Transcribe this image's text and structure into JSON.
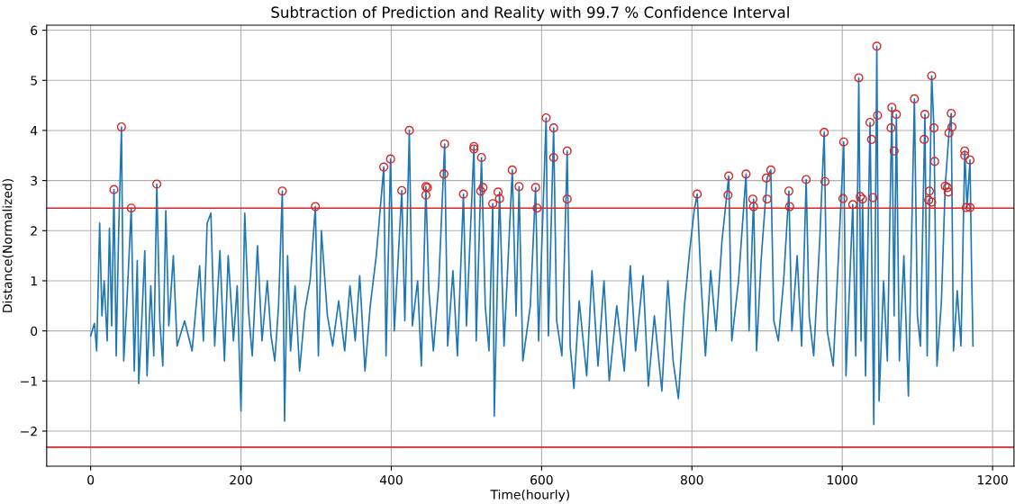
{
  "chart_data": {
    "type": "line",
    "title": "Subtraction of Prediction and Reality with 99.7 % Confidence Interval",
    "xlabel": "Time(hourly)",
    "ylabel": "Distance(Normalized)",
    "xlim": [
      -58.5,
      1228.5
    ],
    "ylim": [
      -2.7,
      6.1
    ],
    "xticks": [
      0,
      200,
      400,
      600,
      800,
      1000,
      1200
    ],
    "yticks": [
      {
        "value": -2,
        "label": "−2"
      },
      {
        "value": -1,
        "label": "−1"
      },
      0,
      1,
      2,
      3,
      4,
      5,
      6
    ],
    "grid": true,
    "series": [
      {
        "color": "#1f77b4",
        "marker": "none",
        "x": [
          0,
          5,
          8,
          12,
          15,
          18,
          22,
          25,
          28,
          31,
          34,
          37,
          41,
          44,
          48,
          54,
          58,
          62,
          64,
          68,
          72,
          75,
          80,
          84,
          88,
          92,
          96,
          100,
          104,
          110,
          115,
          125,
          135,
          145,
          150,
          155,
          160,
          165,
          172,
          178,
          183,
          190,
          195,
          200,
          205,
          210,
          215,
          222,
          228,
          235,
          240,
          245,
          250,
          255,
          258,
          262,
          266,
          272,
          278,
          285,
          292,
          299,
          303,
          307,
          315,
          322,
          330,
          338,
          345,
          352,
          358,
          365,
          372,
          380,
          390,
          393,
          399,
          404,
          414,
          418,
          424,
          428,
          435,
          440,
          446,
          450,
          456,
          463,
          471,
          475,
          482,
          488,
          496,
          500,
          510,
          513,
          520,
          525,
          530,
          535,
          537,
          544,
          550,
          561,
          566,
          570,
          575,
          585,
          592,
          596,
          606,
          609,
          616,
          620,
          627,
          634,
          638,
          643,
          650,
          660,
          667,
          675,
          683,
          690,
          700,
          710,
          718,
          725,
          735,
          742,
          750,
          760,
          768,
          775,
          782,
          790,
          797,
          803,
          807,
          812,
          818,
          825,
          832,
          840,
          849,
          853,
          862,
          872,
          876,
          882,
          886,
          892,
          900,
          905,
          909,
          915,
          922,
          929,
          933,
          940,
          946,
          952,
          956,
          962,
          970,
          976,
          980,
          988,
          995,
          1002,
          1005,
          1010,
          1014,
          1018,
          1022,
          1025,
          1027,
          1031,
          1037,
          1042,
          1046,
          1049,
          1055,
          1060,
          1066,
          1069,
          1072,
          1076,
          1082,
          1088,
          1096,
          1100,
          1104,
          1110,
          1113,
          1119,
          1122,
          1126,
          1132,
          1137,
          1142,
          1145,
          1148,
          1153,
          1158,
          1163,
          1166,
          1170,
          1172,
          1174
        ],
        "values": [
          -0.1,
          0.15,
          -0.4,
          2.15,
          0.3,
          1.0,
          -0.2,
          2.05,
          0.1,
          2.82,
          -0.5,
          1.8,
          4.07,
          -0.6,
          0.5,
          2.45,
          -0.8,
          1.4,
          -1.05,
          0.2,
          1.6,
          -0.9,
          0.9,
          -0.5,
          2.93,
          0.2,
          -0.7,
          2.4,
          0.1,
          1.5,
          -0.3,
          0.2,
          -0.4,
          1.3,
          -0.2,
          2.15,
          2.35,
          -0.3,
          1.6,
          -0.6,
          1.5,
          -0.2,
          0.9,
          -1.6,
          2.35,
          0.4,
          -0.5,
          1.7,
          -0.2,
          1.0,
          -0.1,
          -0.6,
          0.5,
          2.79,
          -1.8,
          1.5,
          -0.4,
          0.9,
          -0.8,
          0.4,
          1.0,
          2.48,
          -0.5,
          2.0,
          0.3,
          -0.3,
          0.6,
          -0.4,
          0.9,
          -0.2,
          1.1,
          -0.8,
          0.5,
          1.5,
          3.27,
          -0.5,
          3.43,
          0.0,
          2.8,
          0.2,
          4.0,
          0.1,
          1.0,
          -0.7,
          2.88,
          0.8,
          -0.4,
          0.9,
          3.73,
          -0.3,
          1.2,
          -0.5,
          2.73,
          0.1,
          3.68,
          -0.2,
          3.46,
          0.5,
          -0.4,
          2.54,
          -1.7,
          2.77,
          -0.3,
          3.21,
          0.3,
          2.88,
          -0.6,
          0.5,
          2.86,
          -0.2,
          4.25,
          -0.1,
          4.05,
          0.2,
          -0.5,
          3.59,
          -0.3,
          -1.15,
          0.6,
          -0.9,
          1.2,
          -0.7,
          1.0,
          -1.0,
          0.5,
          -0.8,
          1.3,
          -0.4,
          1.1,
          -1.1,
          0.3,
          -1.2,
          1.0,
          -0.6,
          -1.35,
          0.5,
          1.6,
          2.4,
          2.73,
          1.0,
          -0.5,
          1.2,
          0.0,
          1.8,
          3.09,
          -0.2,
          1.0,
          3.13,
          0.0,
          2.63,
          -0.4,
          1.4,
          3.05,
          3.21,
          0.2,
          -0.2,
          1.0,
          2.79,
          0.0,
          1.5,
          -0.3,
          3.02,
          0.3,
          -0.5,
          1.8,
          3.96,
          0.0,
          -0.7,
          1.5,
          3.77,
          -0.9,
          1.0,
          2.52,
          -0.5,
          5.05,
          -0.2,
          2.63,
          -0.9,
          4.16,
          -1.87,
          5.68,
          -1.4,
          1.0,
          -0.6,
          4.46,
          0.3,
          4.32,
          -0.6,
          1.5,
          -1.3,
          4.63,
          0.3,
          -0.3,
          4.32,
          -0.5,
          5.09,
          4.05,
          -0.7,
          0.6,
          2.89,
          3.95,
          4.34,
          -0.4,
          0.8,
          -0.3,
          3.59,
          2.46,
          3.41,
          1.3,
          -0.3
        ]
      },
      {
        "type": "scatter",
        "color": "#d62728",
        "marker": "circle",
        "x": [
          31,
          41,
          54,
          88,
          255,
          299,
          390,
          399,
          414,
          424,
          446,
          448,
          446,
          471,
          470,
          510,
          510,
          520,
          519,
          522,
          496,
          535,
          542,
          544,
          561,
          570,
          592,
          594,
          606,
          616,
          616,
          634,
          634,
          807,
          849,
          848,
          872,
          881,
          882,
          899,
          905,
          900,
          929,
          930,
          952,
          976,
          977,
          1002,
          1001,
          1014,
          1022,
          1024,
          1027,
          1037,
          1039,
          1041,
          1046,
          1047,
          1066,
          1065,
          1069,
          1072,
          1096,
          1110,
          1109,
          1116,
          1115,
          1119,
          1119,
          1122,
          1123,
          1140,
          1142,
          1145,
          1146,
          1137,
          1141,
          1163,
          1163,
          1165,
          1170,
          1170
        ],
        "values": [
          2.82,
          4.07,
          2.45,
          2.93,
          2.79,
          2.48,
          3.27,
          3.43,
          2.8,
          4.0,
          2.88,
          2.86,
          2.71,
          3.73,
          3.13,
          3.68,
          3.63,
          3.46,
          2.79,
          2.86,
          2.73,
          2.54,
          2.77,
          2.64,
          3.21,
          2.88,
          2.86,
          2.45,
          4.25,
          4.05,
          3.46,
          3.59,
          2.63,
          2.73,
          3.09,
          2.71,
          3.13,
          2.63,
          2.48,
          3.05,
          3.21,
          2.63,
          2.79,
          2.48,
          3.02,
          3.96,
          2.98,
          3.77,
          2.64,
          2.52,
          5.05,
          2.68,
          2.63,
          4.16,
          3.82,
          2.66,
          5.68,
          4.3,
          4.46,
          4.05,
          3.59,
          4.32,
          4.63,
          4.32,
          3.82,
          2.79,
          2.61,
          2.57,
          5.09,
          4.05,
          3.38,
          2.86,
          3.95,
          4.34,
          4.07,
          2.89,
          2.77,
          3.5,
          3.59,
          2.46,
          2.46,
          3.41
        ]
      }
    ],
    "ref_lines": [
      {
        "axis": "y",
        "value": 2.45,
        "color": "#d62728"
      },
      {
        "axis": "y",
        "value": -2.32,
        "color": "#d62728"
      }
    ]
  }
}
